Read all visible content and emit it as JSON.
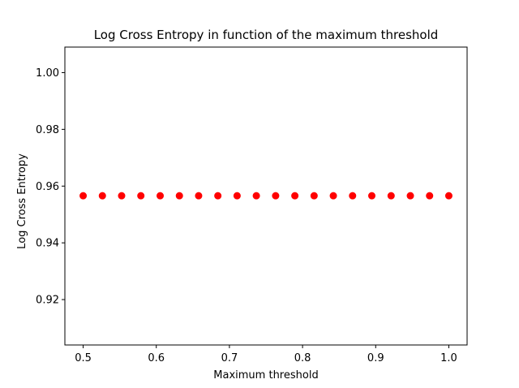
{
  "chart_data": {
    "type": "scatter",
    "title": "Log Cross Entropy in function of the maximum threshold",
    "xlabel": "Maximum threshold",
    "ylabel": "Log Cross Entropy",
    "xlim": [
      0.475,
      1.025
    ],
    "ylim": [
      0.904,
      1.009
    ],
    "xticks": [
      0.5,
      0.6,
      0.7,
      0.8,
      0.9,
      1.0
    ],
    "xtick_labels": [
      "0.5",
      "0.6",
      "0.7",
      "0.8",
      "0.9",
      "1.0"
    ],
    "yticks": [
      0.92,
      0.94,
      0.96,
      0.98,
      1.0
    ],
    "ytick_labels": [
      "0.92",
      "0.94",
      "0.96",
      "0.98",
      "1.00"
    ],
    "grid": false,
    "marker_color": "#ff0000",
    "series": [
      {
        "x": [
          0.5,
          0.5263,
          0.5526,
          0.5789,
          0.6053,
          0.6316,
          0.6579,
          0.6842,
          0.7105,
          0.7368,
          0.7632,
          0.7895,
          0.8158,
          0.8421,
          0.8684,
          0.8947,
          0.9211,
          0.9474,
          0.9737,
          1.0
        ],
        "y": [
          0.9566,
          0.9566,
          0.9566,
          0.9566,
          0.9566,
          0.9566,
          0.9566,
          0.9566,
          0.9566,
          0.9566,
          0.9566,
          0.9566,
          0.9566,
          0.9566,
          0.9566,
          0.9566,
          0.9566,
          0.9566,
          0.9566,
          0.9566
        ]
      }
    ]
  }
}
